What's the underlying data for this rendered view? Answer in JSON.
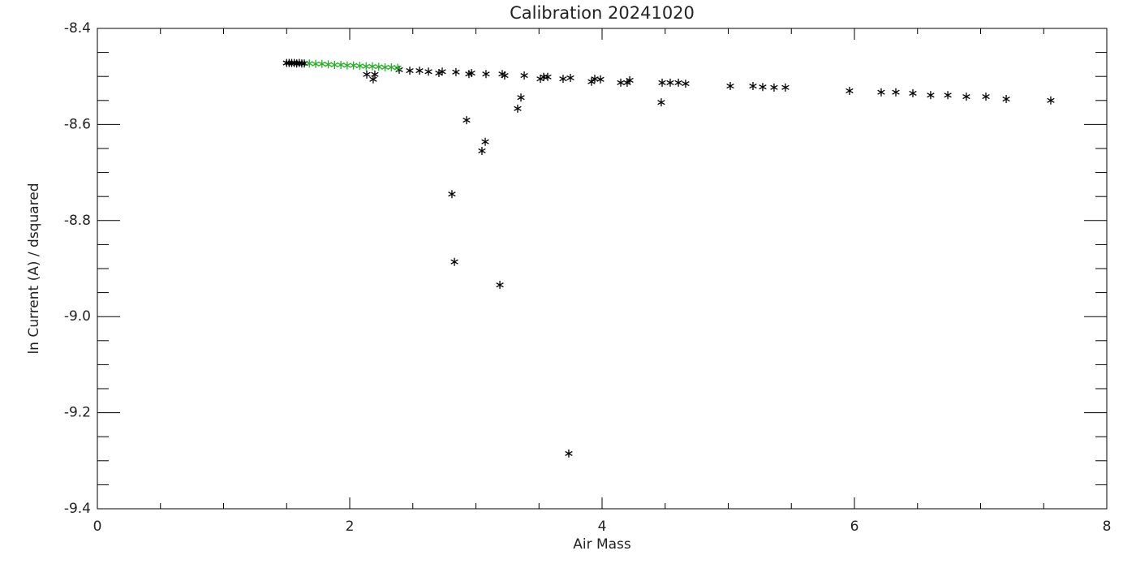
{
  "chart_data": {
    "type": "scatter",
    "title": "Calibration 20241020",
    "xlabel": "Air Mass",
    "ylabel": "ln Current (A) / dsquared",
    "xlim": [
      0,
      8
    ],
    "ylim": [
      -8.4,
      -9.4
    ],
    "xticks": [
      0,
      2,
      4,
      6,
      8
    ],
    "xminorticks": [
      0.5,
      1,
      1.5,
      2.5,
      3,
      3.5,
      4.5,
      5,
      5.5,
      6.5,
      7,
      7.5
    ],
    "yticks": [
      -8.4,
      -8.6,
      -8.8,
      {
        "value": -9,
        "label": "-9.0"
      },
      -9.2,
      -9.4
    ],
    "yminorticks": [
      -8.45,
      -8.5,
      -8.55,
      -8.65,
      -8.7,
      -8.75,
      -8.85,
      -8.9,
      -8.95,
      -9.05,
      -9.1,
      -9.15,
      -9.25,
      -9.3,
      -9.35
    ],
    "series": [
      {
        "color": "#000000",
        "x": [
          1.5,
          1.52,
          1.54,
          1.56,
          1.58,
          1.6,
          1.62,
          1.64,
          2.135,
          2.186,
          2.199,
          2.392,
          2.476,
          2.553,
          2.624,
          2.707,
          2.733,
          2.842,
          2.945,
          2.965,
          3.08,
          3.209,
          3.228,
          3.383,
          3.511,
          3.537,
          3.569,
          3.691,
          3.749,
          3.916,
          3.942,
          3.987,
          4.148,
          4.199,
          4.219,
          4.476,
          4.54,
          4.605,
          4.662,
          5.016,
          5.196,
          5.273,
          5.363,
          5.453,
          5.961,
          6.212,
          6.328,
          6.463,
          6.604,
          6.74,
          6.887,
          7.042,
          7.203,
          7.556,
          4.469,
          3.357,
          3.331,
          2.926,
          3.074,
          3.048,
          2.81,
          2.83,
          3.19,
          3.736
        ],
        "values": [
          -8.472,
          -8.472,
          -8.472,
          -8.472,
          -8.473,
          -8.472,
          -8.473,
          -8.473,
          -8.496,
          -8.506,
          -8.496,
          -8.486,
          -8.488,
          -8.488,
          -8.49,
          -8.493,
          -8.49,
          -8.491,
          -8.495,
          -8.493,
          -8.495,
          -8.495,
          -8.498,
          -8.498,
          -8.505,
          -8.501,
          -8.501,
          -8.505,
          -8.503,
          -8.511,
          -8.505,
          -8.506,
          -8.513,
          -8.513,
          -8.508,
          -8.513,
          -8.513,
          -8.513,
          -8.515,
          -8.52,
          -8.52,
          -8.522,
          -8.523,
          -8.523,
          -8.53,
          -8.533,
          -8.533,
          -8.535,
          -8.539,
          -8.539,
          -8.542,
          -8.542,
          -8.547,
          -8.55,
          -8.554,
          -8.544,
          -8.567,
          -8.591,
          -8.636,
          -8.655,
          -8.745,
          -8.886,
          -8.934,
          -9.285
        ]
      },
      {
        "color": "#22b022",
        "x": [
          1.68,
          1.73,
          1.78,
          1.83,
          1.88,
          1.93,
          1.98,
          2.03,
          2.08,
          2.13,
          2.18,
          2.23,
          2.28,
          2.33,
          2.38
        ],
        "values": [
          -8.473,
          -8.474,
          -8.474,
          -8.475,
          -8.476,
          -8.476,
          -8.477,
          -8.477,
          -8.478,
          -8.479,
          -8.479,
          -8.48,
          -8.481,
          -8.481,
          -8.482
        ]
      }
    ]
  }
}
